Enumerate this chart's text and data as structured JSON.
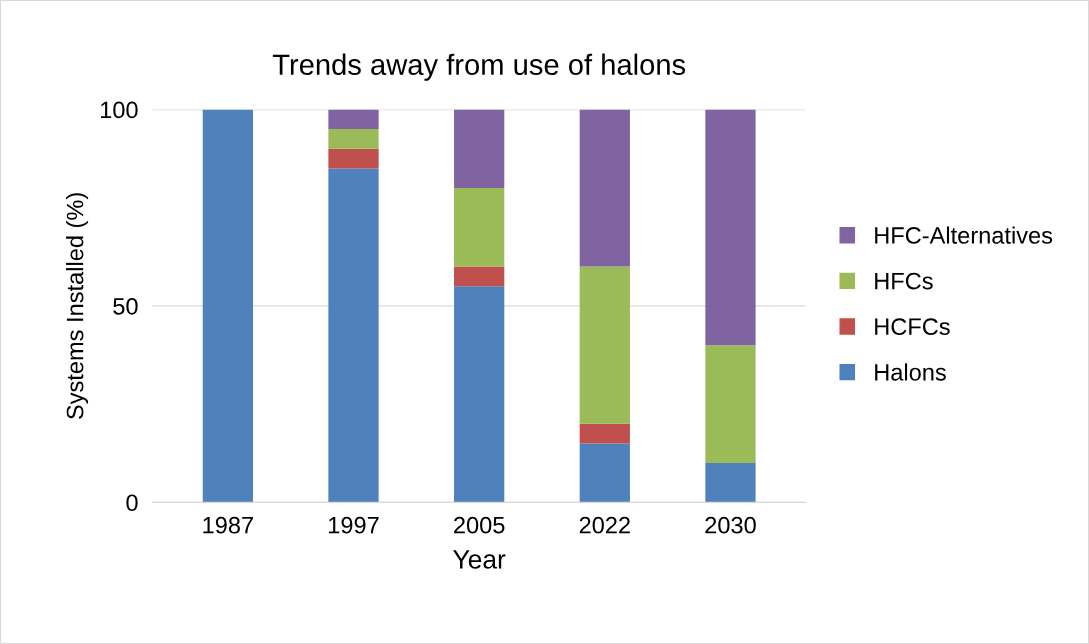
{
  "chart_data": {
    "type": "bar",
    "title": "Trends away from use of halons",
    "xlabel": "Year",
    "ylabel": "Systems Installed (%)",
    "categories": [
      "1987",
      "1997",
      "2005",
      "2022",
      "2030"
    ],
    "stacked": true,
    "series": [
      {
        "name": "Halons",
        "color": "#4f81bd",
        "values": [
          100,
          85,
          55,
          15,
          10
        ]
      },
      {
        "name": "HCFCs",
        "color": "#c0504d",
        "values": [
          0,
          5,
          5,
          5,
          0
        ]
      },
      {
        "name": "HFCs",
        "color": "#9bbb59",
        "values": [
          0,
          5,
          20,
          40,
          30
        ]
      },
      {
        "name": "HFC-Alternatives",
        "color": "#8064a2",
        "values": [
          0,
          5,
          20,
          40,
          60
        ]
      }
    ],
    "ylim": [
      0,
      100
    ],
    "yticks": [
      0,
      50,
      100
    ],
    "grid": "y",
    "legend": "right"
  }
}
